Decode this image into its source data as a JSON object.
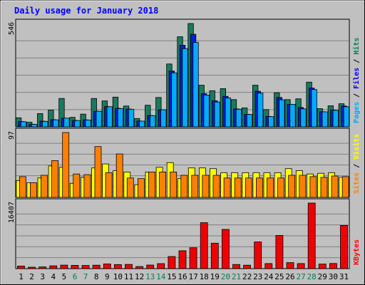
{
  "chart_data": {
    "type": "bar",
    "title": "Daily usage for January 2018",
    "x": [
      "1",
      "2",
      "3",
      "4",
      "5",
      "6",
      "7",
      "8",
      "9",
      "10",
      "11",
      "12",
      "13",
      "14",
      "15",
      "16",
      "17",
      "18",
      "19",
      "20",
      "21",
      "22",
      "23",
      "24",
      "25",
      "26",
      "27",
      "28",
      "29",
      "30",
      "31"
    ],
    "weekend_days": [
      "6",
      "7",
      "13",
      "14",
      "20",
      "21",
      "27",
      "28"
    ],
    "panels": [
      {
        "max_label": "546",
        "ymax": 546,
        "right_label": {
          "parts": [
            "Pages",
            "Files",
            "Hits"
          ],
          "separator": " / ",
          "colors": [
            "#00aaff",
            "#0000ff",
            "#007f60"
          ]
        },
        "series": [
          {
            "name": "Hits",
            "color": "#1a7a5e",
            "values": [
              48,
              24,
              70,
              88,
              150,
              50,
              67,
              150,
              137,
              157,
              110,
              44,
              114,
              155,
              332,
              476,
              546,
              220,
              191,
              202,
              144,
              100,
              220,
              91,
              180,
              144,
              148,
              236,
              96,
              111,
              122
            ]
          },
          {
            "name": "Files",
            "color": "#0022cc",
            "values": [
              28,
              14,
              30,
              38,
              46,
              34,
              37,
              82,
              107,
              98,
              94,
              31,
              60,
              90,
              295,
              431,
              489,
              175,
              138,
              161,
              95,
              66,
              188,
              55,
              155,
              118,
              102,
              205,
              80,
              88,
              110
            ]
          },
          {
            "name": "Pages",
            "color": "#00aaff",
            "values": [
              27,
              13,
              29,
              37,
              46,
              33,
              36,
              82,
              106,
              96,
              93,
              30,
              59,
              90,
              285,
              413,
              446,
              168,
              131,
              152,
              93,
              65,
              178,
              54,
              143,
              119,
              95,
              197,
              79,
              87,
              106
            ]
          }
        ]
      },
      {
        "max_label": "97",
        "ymax": 97,
        "right_label": {
          "parts": [
            "Sites",
            "Visits"
          ],
          "separator": " / ",
          "colors": [
            "#ff8000",
            "#ffff00"
          ]
        },
        "series": [
          {
            "name": "Visits",
            "color": "#ffff00",
            "values": [
              25,
              22,
              29,
              47,
              45,
              21,
              30,
              44,
              50,
              40,
              38,
              19,
              38,
              45,
              52,
              28,
              44,
              44,
              43,
              37,
              37,
              37,
              37,
              37,
              37,
              43,
              40,
              35,
              36,
              37,
              30
            ]
          },
          {
            "name": "Sites",
            "color": "#ff8000",
            "values": [
              31,
              22,
              33,
              55,
              97,
              35,
              34,
              76,
              37,
              65,
              29,
              28,
              38,
              38,
              38,
              33,
              33,
              33,
              33,
              29,
              29,
              29,
              29,
              29,
              29,
              33,
              33,
              31,
              30,
              32,
              31
            ]
          }
        ]
      },
      {
        "max_label": "16407",
        "ymax": 16407,
        "right_label": {
          "parts": [
            "KBytes"
          ],
          "separator": "",
          "colors": [
            "#ff0000"
          ]
        },
        "series": [
          {
            "name": "KBytes",
            "color": "#ee0000",
            "values": [
              650,
              360,
              420,
              700,
              880,
              820,
              790,
              860,
              1180,
              1010,
              1050,
              520,
              900,
              1250,
              3040,
              4480,
              5230,
              11500,
              6360,
              9810,
              1040,
              860,
              6680,
              1270,
              8310,
              1490,
              1270,
              16407,
              1150,
              1290,
              10800
            ]
          }
        ]
      }
    ],
    "colors": {
      "weekday_label": "#000000",
      "weekend_label": "#00805a",
      "title": "#0000ff",
      "background": "#c0c0c0",
      "plot_background": "#c0c0c0",
      "grid": "#808080"
    }
  }
}
